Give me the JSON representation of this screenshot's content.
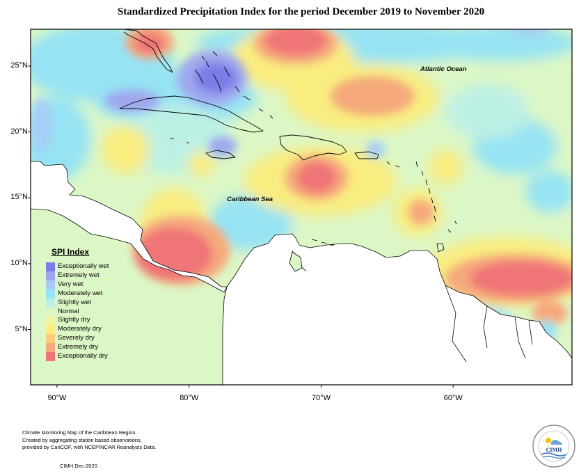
{
  "title": "Standardized Precipitation Index for the period December 2019 to November 2020",
  "map": {
    "lat_range": [
      0.8,
      27.8
    ],
    "lon_range": [
      -92,
      -51
    ],
    "lat_ticks": [
      {
        "value": 25,
        "label": "25°N"
      },
      {
        "value": 20,
        "label": "20°N"
      },
      {
        "value": 15,
        "label": "15°N"
      },
      {
        "value": 10,
        "label": "10°N"
      },
      {
        "value": 5,
        "label": "5°N"
      }
    ],
    "lon_ticks": [
      {
        "value": -90,
        "label": "90°W"
      },
      {
        "value": -80,
        "label": "80°W"
      },
      {
        "value": -70,
        "label": "70°W"
      },
      {
        "value": -60,
        "label": "60°W"
      }
    ],
    "labels": {
      "atlantic": "Atlantic Ocean",
      "caribbean": "Caribbean Sea"
    }
  },
  "legend": {
    "title": "SPI Index",
    "items": [
      {
        "label": "Exceptionally wet",
        "color": "#7c7ce8"
      },
      {
        "label": "Extremely wet",
        "color": "#9fa8ee"
      },
      {
        "label": "Very wet",
        "color": "#a7cdf6"
      },
      {
        "label": "Moderately wet",
        "color": "#96e3f4"
      },
      {
        "label": "Slightly wet",
        "color": "#bdf0e4"
      },
      {
        "label": "Normal",
        "color": "#dcf7c6"
      },
      {
        "label": "Slightly dry",
        "color": "#eff59e"
      },
      {
        "label": "Moderately dry",
        "color": "#f9ec80"
      },
      {
        "label": "Severely dry",
        "color": "#f8cf7e"
      },
      {
        "label": "Extremely dry",
        "color": "#f5a97c"
      },
      {
        "label": "Exceptionally dry",
        "color": "#f07577"
      }
    ]
  },
  "footer": {
    "line1": "Climate Monitoring Map of the Caribbean Region.",
    "line2": "Created by aggregating station based observations,",
    "line3": "provided by CariCOF, with NCEP/NCAR Reanalysis Data.",
    "date": "CIMH Dec-2020"
  },
  "logo": {
    "text": "CIMH"
  }
}
